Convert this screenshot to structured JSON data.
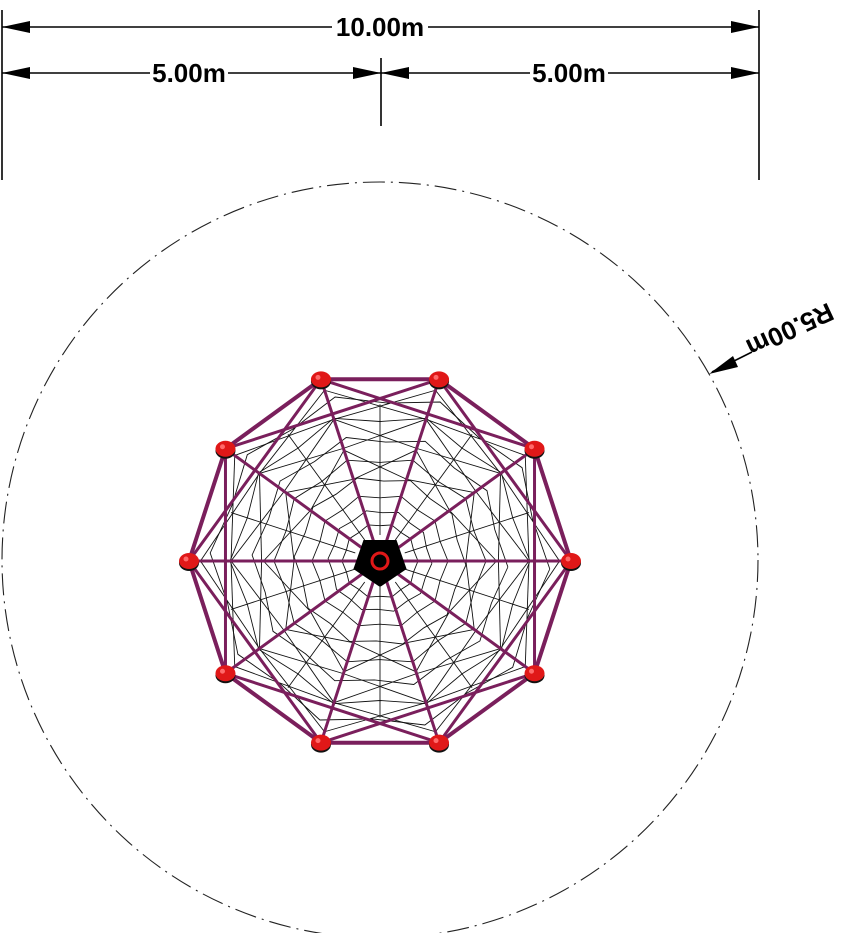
{
  "dimensions": {
    "overall_width": "10.00m",
    "left_half": "5.00m",
    "right_half": "5.00m",
    "radius": "R5.00m"
  },
  "structure": {
    "frame_color": "#7a1f5c",
    "connector_color": "#e01818",
    "net_color": "#111111",
    "hub_color": "#000000",
    "posts": 10
  }
}
